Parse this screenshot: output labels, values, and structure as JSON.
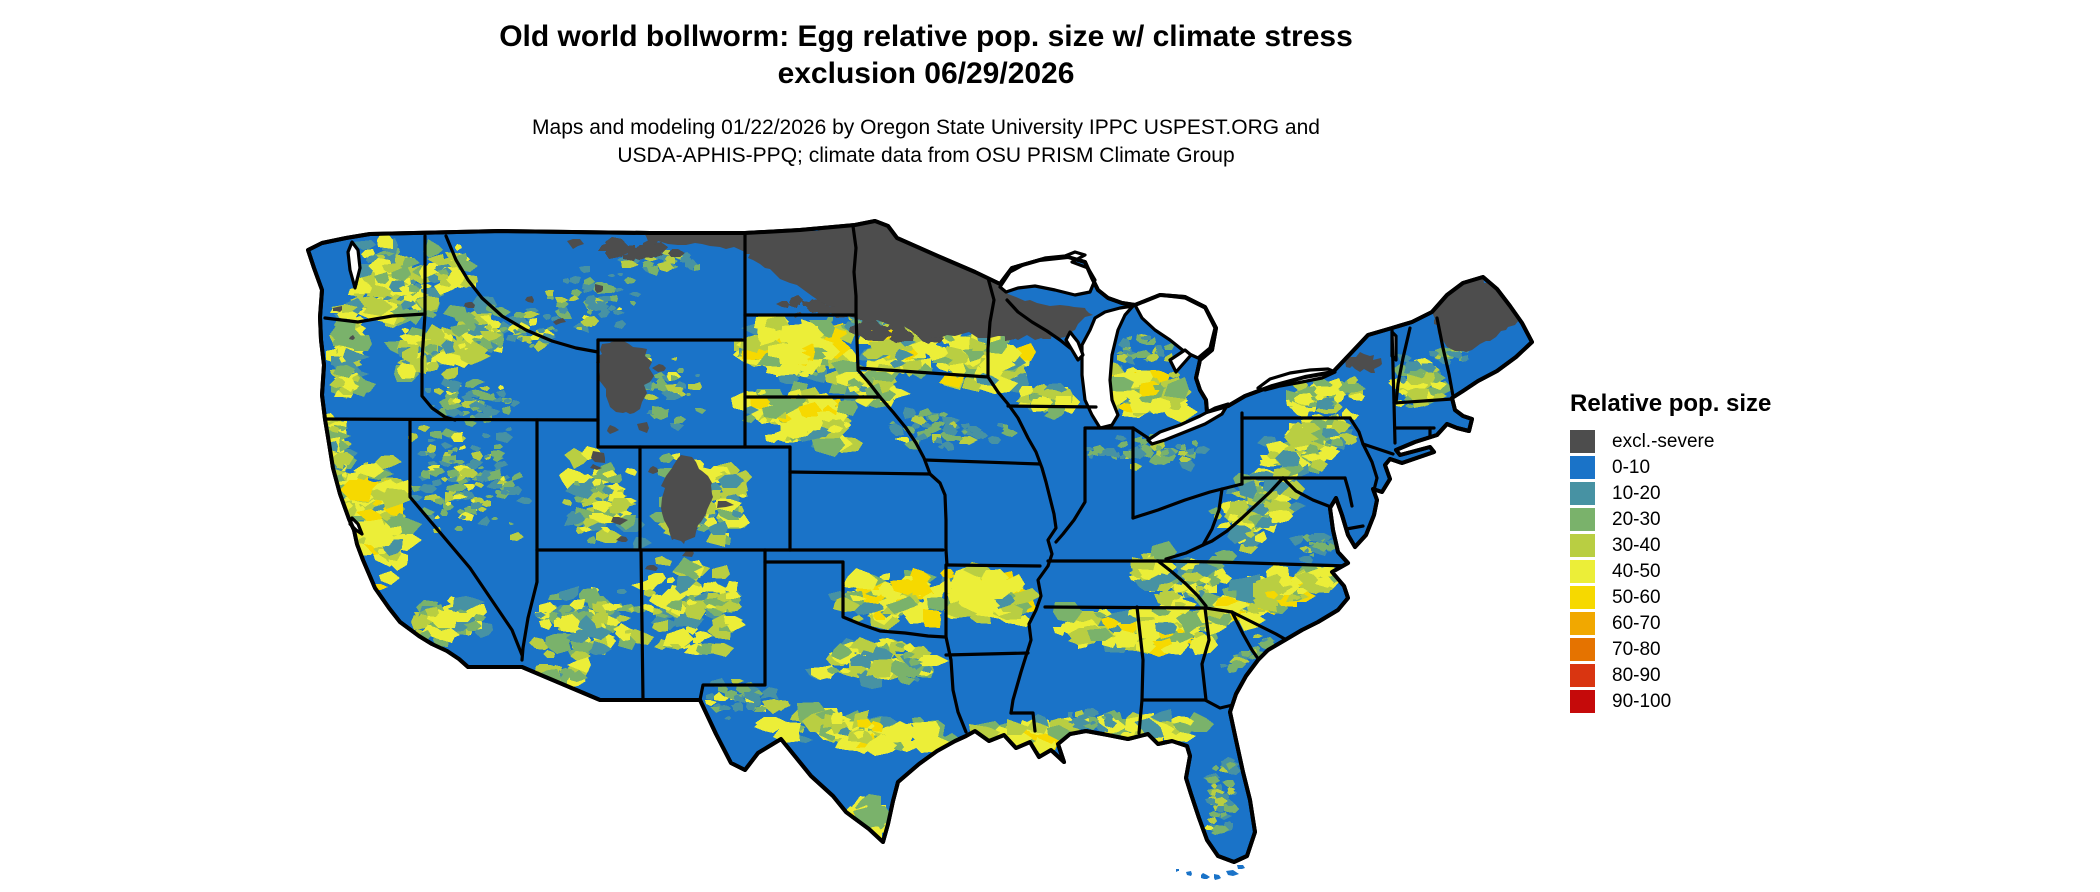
{
  "header": {
    "title_line1": "Old world bollworm: Egg relative pop. size w/ climate stress",
    "title_line2": "exclusion 06/29/2026",
    "subtitle_line1": "Maps and modeling 01/22/2026 by Oregon State University IPPC USPEST.ORG and",
    "subtitle_line2": "USDA-APHIS-PPQ; climate data from OSU PRISM Climate Group"
  },
  "legend": {
    "title": "Relative pop. size",
    "items": [
      {
        "key": "excl",
        "label": "excl.-severe",
        "color": "#4d4d4d"
      },
      {
        "key": "b0",
        "label": "0-10",
        "color": "#1a73c8"
      },
      {
        "key": "b10",
        "label": "10-20",
        "color": "#4792a3"
      },
      {
        "key": "b20",
        "label": "20-30",
        "color": "#7ab26b"
      },
      {
        "key": "b30",
        "label": "30-40",
        "color": "#b9ce42"
      },
      {
        "key": "b40",
        "label": "40-50",
        "color": "#ecee38"
      },
      {
        "key": "b50",
        "label": "50-60",
        "color": "#f6d900"
      },
      {
        "key": "b60",
        "label": "60-70",
        "color": "#f1a800"
      },
      {
        "key": "b70",
        "label": "70-80",
        "color": "#e57300"
      },
      {
        "key": "b80",
        "label": "80-90",
        "color": "#d93511"
      },
      {
        "key": "b90",
        "label": "90-100",
        "color": "#c50a0a"
      }
    ]
  },
  "map": {
    "water_color": "#ffffff",
    "border_color": "#000000",
    "land_class": "0-10",
    "excluded_class": "excl.-severe"
  }
}
